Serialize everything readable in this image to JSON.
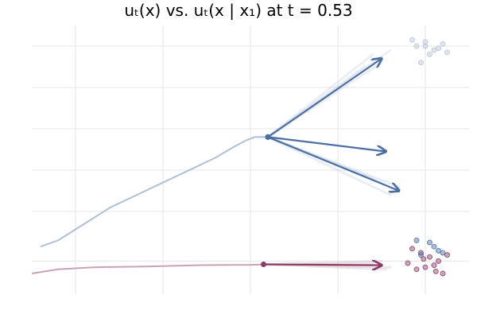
{
  "chart_data": {
    "type": "line",
    "title": "uₜ(x) vs. uₜ(x | x₁) at t = 0.53",
    "xlabel": "",
    "ylabel": "",
    "xlim": [
      -2.5,
      2.5
    ],
    "ylim": [
      -3.0,
      3.5
    ],
    "grid": true,
    "legend": "none",
    "colors": {
      "blue": "#4c6fa3",
      "blue_light": "#aebfd8",
      "pink": "#8a3c66",
      "pink_light": "#c9a2b7",
      "point_light": "#b9c3d6"
    },
    "x_gridlines": [
      -2,
      -1,
      0,
      1,
      2
    ],
    "y_gridlines": [
      -2.2,
      -1,
      0,
      1,
      2,
      3
    ],
    "series": [
      {
        "color_key": "blue_light",
        "kind": "trajectory",
        "x": [
          -2.4,
          -2.2,
          -1.9,
          -1.6,
          -1.2,
          -0.8,
          -0.4,
          -0.2,
          -0.05,
          0.05,
          0.2
        ],
        "y": [
          -1.85,
          -1.7,
          -1.3,
          -0.9,
          -0.5,
          -0.1,
          0.3,
          0.55,
          0.72,
          0.8,
          0.8
        ]
      },
      {
        "color_key": "pink_light",
        "kind": "trajectory",
        "x": [
          -2.5,
          -2.2,
          -1.8,
          -1.2,
          -0.6,
          0.0,
          0.15
        ],
        "y": [
          -2.5,
          -2.4,
          -2.35,
          -2.33,
          -2.3,
          -2.29,
          -2.28
        ]
      }
    ],
    "arrows": [
      {
        "color_key": "blue",
        "x0": 0.2,
        "y0": 0.8,
        "x1": 1.55,
        "y1": 0.45
      },
      {
        "color_key": "blue",
        "x0": 0.2,
        "y0": 0.8,
        "x1": 1.7,
        "y1": -0.5
      },
      {
        "color_key": "blue",
        "x0": 0.2,
        "y0": 0.8,
        "x1": 1.5,
        "y1": 2.7
      },
      {
        "color_key": "pink",
        "x0": 0.15,
        "y0": -2.28,
        "x1": 1.5,
        "y1": -2.3
      }
    ],
    "fans": [
      {
        "color_key": "blue_light",
        "x0": 0.2,
        "y0": 0.8,
        "x1": [
          1.4,
          1.5,
          1.6,
          1.3
        ],
        "y1": [
          2.8,
          2.6,
          2.9,
          2.5
        ]
      },
      {
        "color_key": "blue_light",
        "x0": 0.2,
        "y0": 0.8,
        "x1": [
          1.5,
          1.6,
          1.7,
          1.4
        ],
        "y1": [
          -0.3,
          -0.6,
          -0.4,
          -0.2
        ]
      },
      {
        "color_key": "pink_light",
        "x0": 0.15,
        "y0": -2.28,
        "x1": [
          1.5,
          1.6,
          1.4,
          1.55
        ],
        "y1": [
          -2.2,
          -2.35,
          -2.25,
          -2.4
        ]
      }
    ],
    "points": [
      {
        "color_key": "point_light",
        "x": [
          1.9,
          2.0,
          2.1,
          2.2,
          2.05,
          1.95,
          2.15,
          1.85,
          2.25,
          2.0
        ],
        "y": [
          3.0,
          3.1,
          2.9,
          3.05,
          2.8,
          2.6,
          2.95,
          3.15,
          2.85,
          3.0
        ]
      },
      {
        "color_key": "pink",
        "x": [
          1.85,
          1.95,
          2.05,
          2.15,
          2.1,
          1.9,
          2.2,
          2.0,
          2.25,
          1.8,
          2.12,
          1.98
        ],
        "y": [
          -1.9,
          -2.0,
          -2.1,
          -2.2,
          -2.3,
          -2.4,
          -2.5,
          -2.35,
          -2.05,
          -2.25,
          -2.45,
          -2.15
        ]
      },
      {
        "color_key": "blue",
        "x": [
          1.9,
          2.1,
          2.2,
          2.05,
          1.95,
          2.15
        ],
        "y": [
          -1.7,
          -1.85,
          -2.0,
          -1.75,
          -2.05,
          -1.95
        ]
      }
    ]
  }
}
